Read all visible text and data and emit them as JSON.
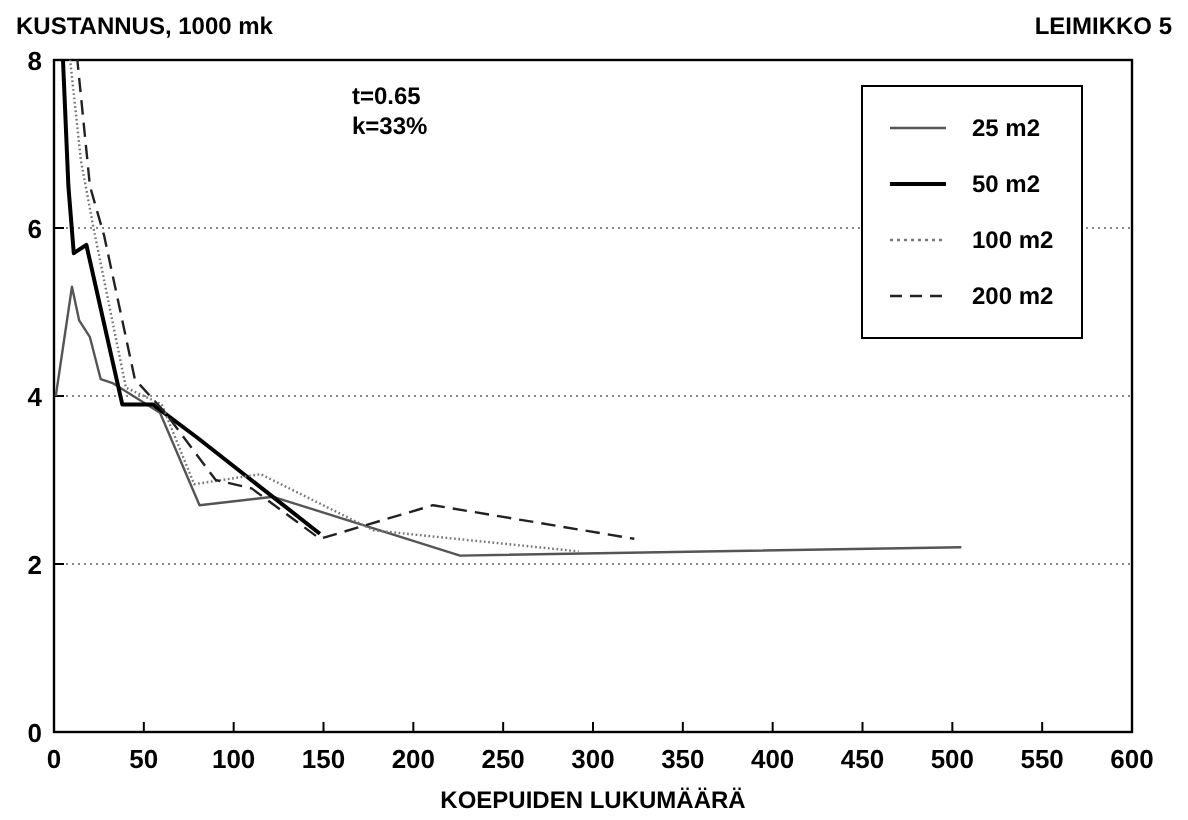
{
  "chart_data": {
    "type": "line",
    "title": "LEIMIKKO 5",
    "ylabel": "KUSTANNUS, 1000 mk",
    "xlabel": "KOEPUIDEN LUKUMÄÄRÄ",
    "annotations": [
      "t=0.65",
      "k=33%"
    ],
    "xlim": [
      0,
      600
    ],
    "xticks": [
      0,
      50,
      100,
      150,
      200,
      250,
      300,
      350,
      400,
      450,
      500,
      550,
      600
    ],
    "ylim": [
      0,
      8
    ],
    "yticks": [
      0,
      2,
      4,
      6,
      8
    ],
    "grid": "y",
    "legend": "top right",
    "series": [
      {
        "name": "25 m2",
        "color": "#555555",
        "line_style": "solid",
        "x": [
          1,
          10,
          14,
          20,
          26,
          33,
          59,
          81,
          122,
          226,
          505
        ],
        "values": [
          4.0,
          5.3,
          4.9,
          4.7,
          4.2,
          4.15,
          3.8,
          2.7,
          2.8,
          2.1,
          2.2
        ]
      },
      {
        "name": "50 m2",
        "color": "#000000",
        "line_style": "solid",
        "x": [
          5,
          8,
          11,
          18,
          38,
          55,
          80,
          148
        ],
        "values": [
          8.0,
          6.5,
          5.7,
          5.8,
          3.9,
          3.9,
          3.5,
          2.36
        ]
      },
      {
        "name": "100 m2",
        "color": "#777777",
        "line_style": "dotted",
        "x": [
          9,
          15,
          22,
          40,
          60,
          78,
          115,
          178,
          292
        ],
        "values": [
          8.0,
          6.8,
          6.0,
          4.1,
          3.9,
          2.95,
          3.07,
          2.4,
          2.15
        ]
      },
      {
        "name": "200 m2",
        "color": "#222222",
        "line_style": "dashed",
        "x": [
          13,
          20,
          28,
          45,
          62,
          90,
          110,
          148,
          211,
          323
        ],
        "values": [
          8.0,
          6.5,
          5.9,
          4.2,
          3.8,
          3.0,
          2.9,
          2.3,
          2.7,
          2.3
        ]
      }
    ]
  }
}
